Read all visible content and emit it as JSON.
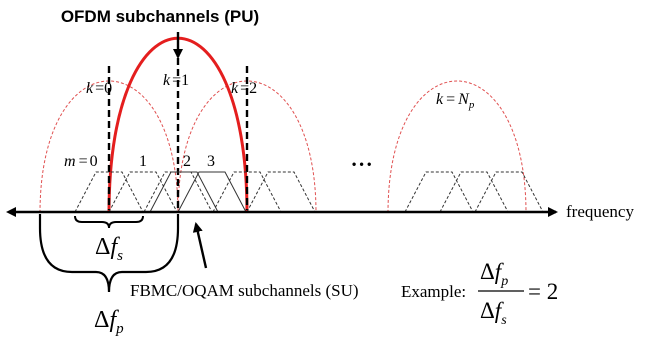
{
  "title_top": "OFDM subchannels (PU)",
  "ofdm_labels": [
    {
      "k": "k",
      "eq": "=",
      "val": "0"
    },
    {
      "k": "k",
      "eq": "=",
      "val": "1"
    },
    {
      "k": "k",
      "eq": "=",
      "val": "2"
    },
    {
      "k": "k",
      "eq": "=",
      "val": "N",
      "sub": "p"
    }
  ],
  "fbmc_labels": {
    "m": "m",
    "eq": "=",
    "m0": "0",
    "m1": "1",
    "m2": "2",
    "m3": "3"
  },
  "ellipsis": "• • •",
  "axis_label": "frequency",
  "delta_fs": {
    "delta": "Δ",
    "f": "f",
    "sub": "s"
  },
  "delta_fp": {
    "delta": "Δ",
    "f": "f",
    "sub": "p"
  },
  "fbmc_caption": "FBMC/OQAM subchannels (SU)",
  "example": {
    "prefix": "Example:",
    "num_delta": "Δ",
    "num_f": "f",
    "num_sub": "p",
    "den_delta": "Δ",
    "den_f": "f",
    "den_sub": "s",
    "rhs": "= 2"
  },
  "colors": {
    "red": "#e41e1e",
    "dashed_red": "#e05050",
    "black": "#000000",
    "gray": "#333333"
  }
}
